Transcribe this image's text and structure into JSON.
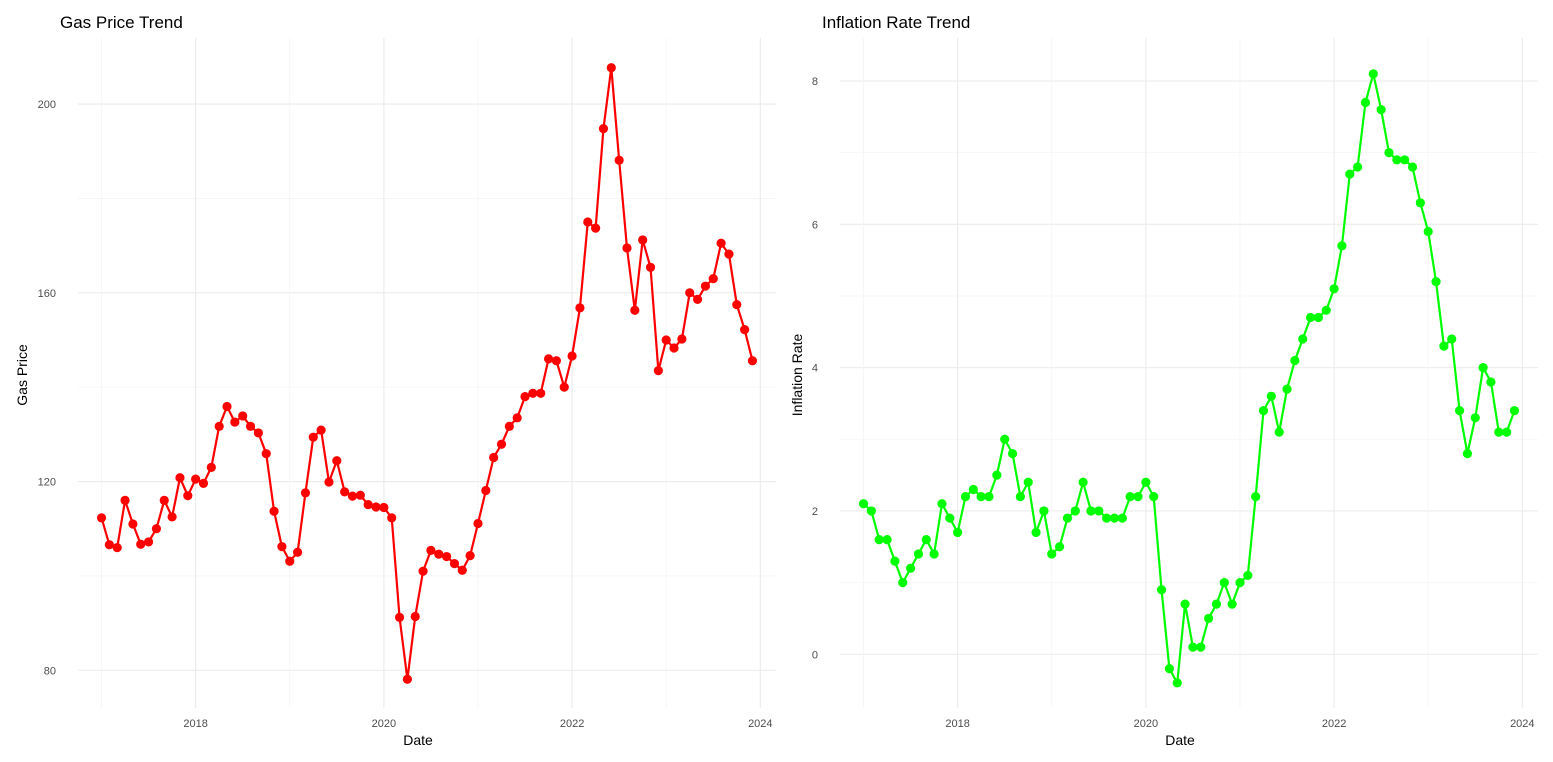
{
  "chart_data": [
    {
      "type": "line",
      "title": "Gas Price Trend",
      "xlabel": "Date",
      "ylabel": "Gas Price",
      "x_ticks": [
        "2018",
        "2020",
        "2022",
        "2024"
      ],
      "y_ticks": [
        "80",
        "120",
        "160",
        "200"
      ],
      "ylim": [
        72,
        214
      ],
      "xlim": [
        "2016-10",
        "2024-03"
      ],
      "grid": true,
      "line_color": "#ff0000",
      "point_color": "#ff0000",
      "start": "2017-01",
      "values": [
        112.3,
        106.6,
        106.0,
        116.0,
        111.0,
        106.7,
        107.2,
        110.0,
        116.0,
        112.5,
        120.8,
        117.0,
        120.5,
        119.6,
        123.0,
        131.7,
        135.9,
        132.6,
        133.9,
        131.7,
        130.3,
        125.9,
        113.7,
        106.2,
        103.1,
        105.0,
        117.6,
        129.4,
        130.9,
        119.9,
        124.4,
        117.8,
        116.9,
        117.1,
        115.1,
        114.6,
        114.5,
        112.3,
        91.2,
        78.1,
        91.4,
        101.0,
        105.4,
        104.6,
        104.1,
        102.6,
        101.2,
        104.3,
        111.1,
        118.1,
        125.1,
        127.9,
        131.7,
        133.5,
        138.0,
        138.7,
        138.7,
        146.0,
        145.6,
        140.0,
        146.6,
        156.8,
        175.0,
        173.7,
        194.8,
        207.7,
        188.1,
        169.5,
        156.3,
        171.2,
        165.4,
        143.5,
        150.0,
        148.3,
        150.2,
        160.0,
        158.6,
        161.4,
        163.0,
        170.5,
        168.2,
        157.5,
        152.2,
        145.6
      ]
    },
    {
      "type": "line",
      "title": "Inflation Rate Trend",
      "xlabel": "Date",
      "ylabel": "Inflation Rate",
      "x_ticks": [
        "2018",
        "2020",
        "2022",
        "2024"
      ],
      "y_ticks": [
        "0",
        "2",
        "4",
        "6",
        "8"
      ],
      "ylim": [
        -0.75,
        8.6
      ],
      "xlim": [
        "2016-10",
        "2024-03"
      ],
      "grid": true,
      "line_color": "#00ff00",
      "point_color": "#00ff00",
      "start": "2017-01",
      "values": [
        2.1,
        2.0,
        1.6,
        1.6,
        1.3,
        1.0,
        1.2,
        1.4,
        1.6,
        1.4,
        2.1,
        1.9,
        1.7,
        2.2,
        2.3,
        2.2,
        2.2,
        2.5,
        3.0,
        2.8,
        2.2,
        2.4,
        1.7,
        2.0,
        1.4,
        1.5,
        1.9,
        2.0,
        2.4,
        2.0,
        2.0,
        1.9,
        1.9,
        1.9,
        2.2,
        2.2,
        2.4,
        2.2,
        0.9,
        -0.2,
        -0.4,
        0.7,
        0.1,
        0.1,
        0.5,
        0.7,
        1.0,
        0.7,
        1.0,
        1.1,
        2.2,
        3.4,
        3.6,
        3.1,
        3.7,
        4.1,
        4.4,
        4.7,
        4.7,
        4.8,
        5.1,
        5.7,
        6.7,
        6.8,
        7.7,
        8.1,
        7.6,
        7.0,
        6.9,
        6.9,
        6.8,
        6.3,
        5.9,
        5.2,
        4.3,
        4.4,
        3.4,
        2.8,
        3.3,
        4.0,
        3.8,
        3.1,
        3.1,
        3.4
      ]
    }
  ]
}
